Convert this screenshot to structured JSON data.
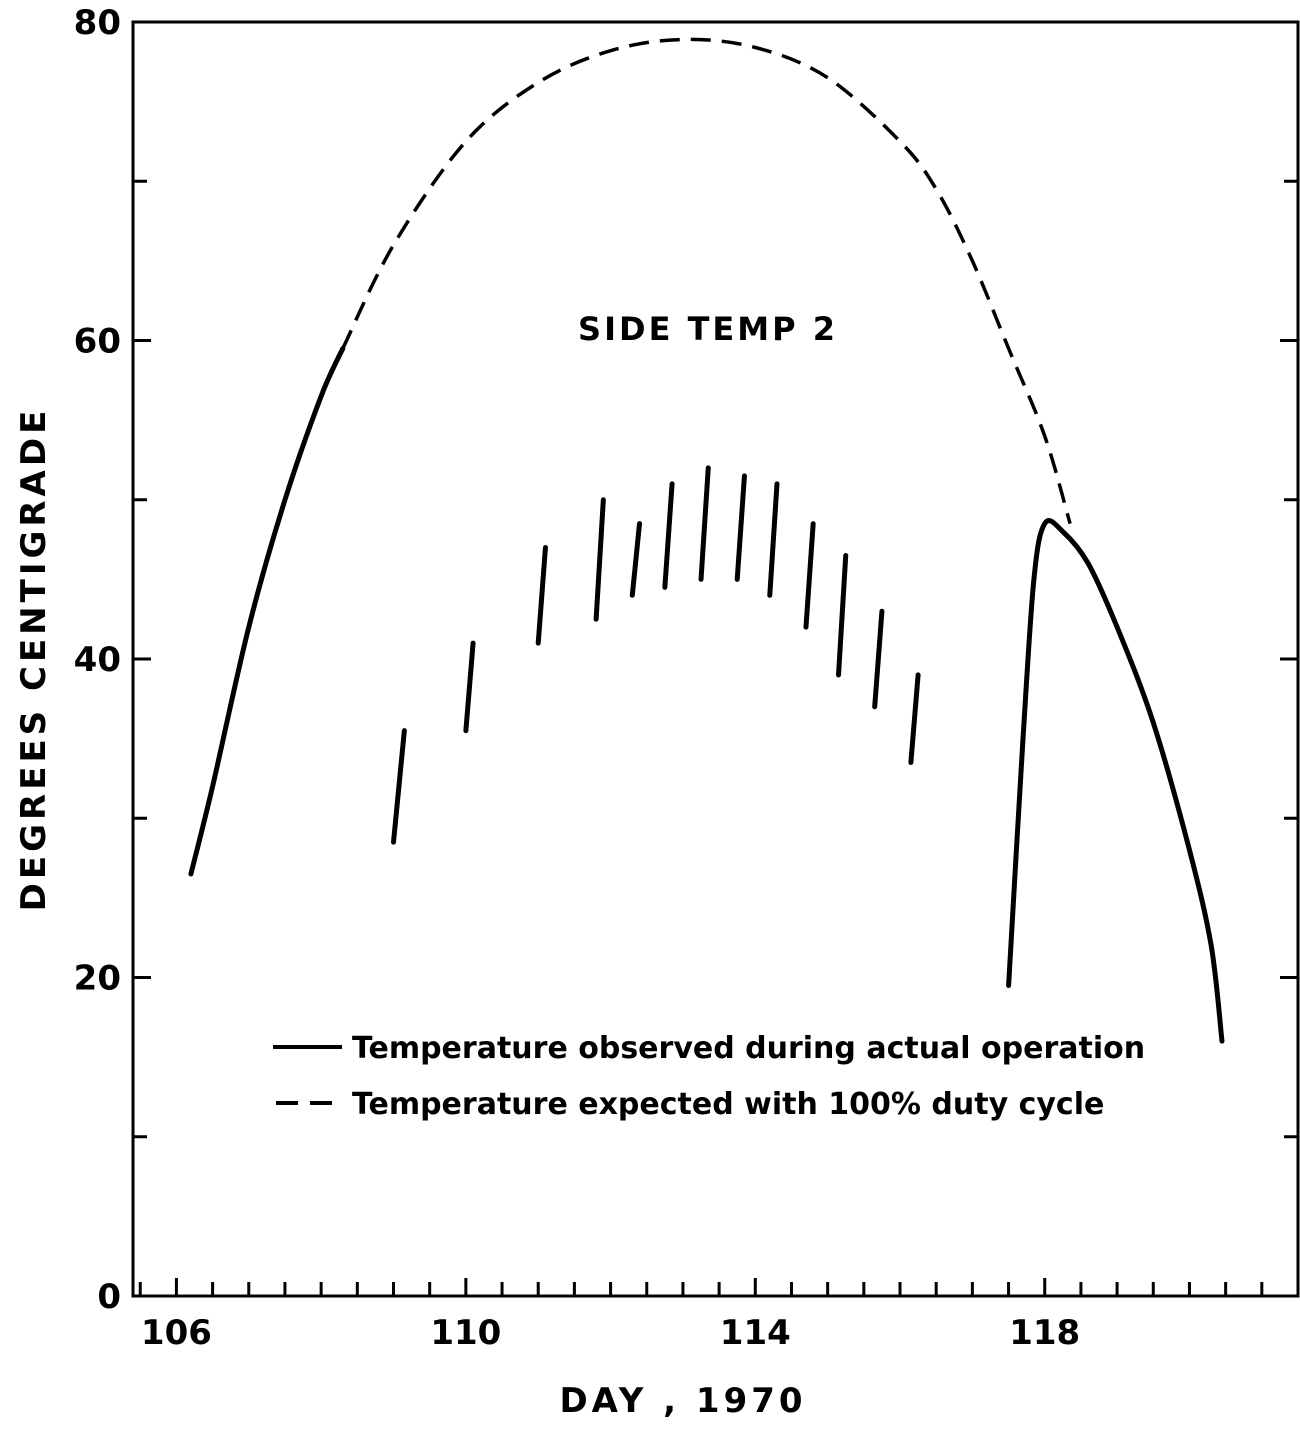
{
  "chart_data": {
    "type": "line",
    "annotation": "SIDE TEMP 2",
    "xlabel": "DAY , 1970",
    "ylabel": "DEGREES   CENTIGRADE",
    "xlim": [
      105.4,
      121.5
    ],
    "ylim": [
      0,
      80
    ],
    "x_ticks": [
      106,
      110,
      114,
      118
    ],
    "y_ticks": [
      0,
      20,
      40,
      60,
      80
    ],
    "x_minor_step": 0.5,
    "y_minor_step": 10,
    "series": [
      {
        "name": "Temperature observed during actual operation",
        "style": "solid",
        "segments": [
          [
            [
              106.2,
              26.5
            ],
            [
              106.5,
              32
            ],
            [
              107,
              42
            ],
            [
              107.5,
              50
            ],
            [
              108,
              56.5
            ],
            [
              108.3,
              59.5
            ]
          ],
          [
            [
              117.5,
              19.5
            ],
            [
              117.7,
              35
            ],
            [
              117.85,
              45
            ],
            [
              118,
              48.5
            ],
            [
              118.25,
              48
            ],
            [
              118.6,
              46
            ],
            [
              119,
              42
            ],
            [
              119.5,
              36
            ],
            [
              120,
              28
            ],
            [
              120.3,
              22
            ],
            [
              120.45,
              16
            ]
          ]
        ]
      },
      {
        "name": "Temperature expected with 100% duty cycle",
        "style": "dashed",
        "segments": [
          [
            [
              108.3,
              59.5
            ],
            [
              109,
              66
            ],
            [
              110,
              72.5
            ],
            [
              111,
              76.2
            ],
            [
              112,
              78.2
            ],
            [
              113,
              78.9
            ],
            [
              114,
              78.4
            ],
            [
              115,
              76.5
            ],
            [
              116,
              72.5
            ],
            [
              116.5,
              69.5
            ],
            [
              117,
              65
            ],
            [
              117.5,
              59.5
            ],
            [
              118,
              54
            ],
            [
              118.35,
              48.5
            ]
          ]
        ]
      }
    ],
    "bars": [
      {
        "x_low": 109.0,
        "x_high": 109.15,
        "low": 28.5,
        "high": 35.5
      },
      {
        "x_low": 110.0,
        "x_high": 110.1,
        "low": 35.5,
        "high": 41
      },
      {
        "x_low": 111.0,
        "x_high": 111.1,
        "low": 41,
        "high": 47
      },
      {
        "x_low": 111.8,
        "x_high": 111.9,
        "low": 42.5,
        "high": 50
      },
      {
        "x_low": 112.3,
        "x_high": 112.4,
        "low": 44,
        "high": 48.5
      },
      {
        "x_low": 112.75,
        "x_high": 112.85,
        "low": 44.5,
        "high": 51
      },
      {
        "x_low": 113.25,
        "x_high": 113.35,
        "low": 45,
        "high": 52
      },
      {
        "x_low": 113.75,
        "x_high": 113.85,
        "low": 45,
        "high": 51.5
      },
      {
        "x_low": 114.2,
        "x_high": 114.3,
        "low": 44,
        "high": 51
      },
      {
        "x_low": 114.7,
        "x_high": 114.8,
        "low": 42,
        "high": 48.5
      },
      {
        "x_low": 115.15,
        "x_high": 115.25,
        "low": 39,
        "high": 46.5
      },
      {
        "x_low": 115.65,
        "x_high": 115.75,
        "low": 37,
        "high": 43
      },
      {
        "x_low": 116.15,
        "x_high": 116.25,
        "low": 33.5,
        "high": 39
      }
    ],
    "legend_position": "lower-center"
  }
}
